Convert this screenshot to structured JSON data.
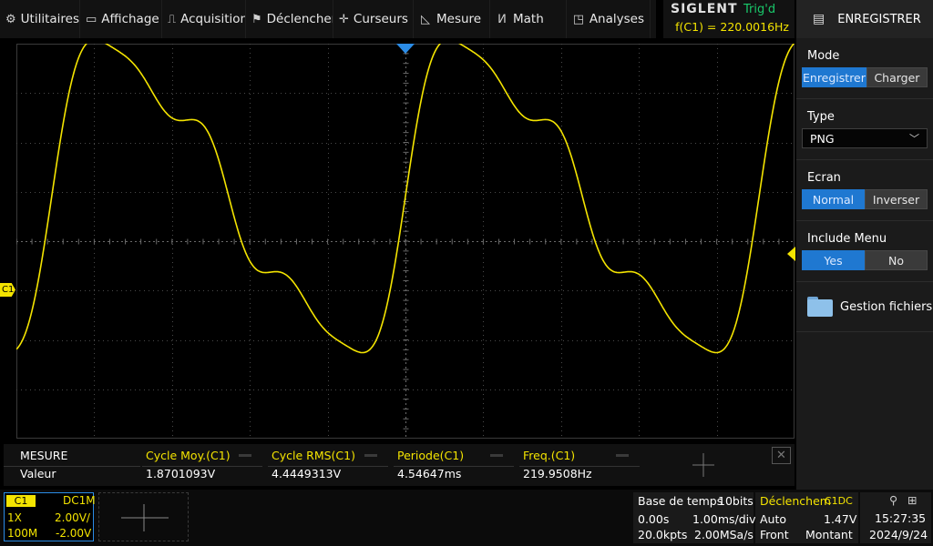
{
  "menu": [
    {
      "label": "Utilitaires",
      "icon": "gear-icon",
      "glyph": "⚙"
    },
    {
      "label": "Affichage",
      "icon": "monitor-icon",
      "glyph": "▭"
    },
    {
      "label": "Acquisition",
      "icon": "acquisition-icon",
      "glyph": "⎍"
    },
    {
      "label": "Déclencheme",
      "icon": "trigger-icon",
      "glyph": "⚑"
    },
    {
      "label": "Curseurs",
      "icon": "cursor-crosshair-icon",
      "glyph": "✛"
    },
    {
      "label": "Mesure",
      "icon": "measure-ruler-icon",
      "glyph": "◺"
    },
    {
      "label": "Math",
      "icon": "math-icon",
      "glyph": "ⵍ"
    },
    {
      "label": "Analyses",
      "icon": "analysis-icon",
      "glyph": "◳"
    }
  ],
  "brand": {
    "logo": "SIGLENT",
    "trig_status": "Trig'd",
    "freq_readout": "f(C1) = 220.0016Hz"
  },
  "panel": {
    "header": "ENREGISTRER",
    "mode": {
      "label": "Mode",
      "options": [
        "Enregistrer",
        "Charger"
      ],
      "selected": 0
    },
    "type": {
      "label": "Type",
      "value": "PNG"
    },
    "screen": {
      "label": "Ecran",
      "options": [
        "Normal",
        "Inverser"
      ],
      "selected": 0
    },
    "include_menu": {
      "label": "Include Menu",
      "options": [
        "Yes",
        "No"
      ],
      "selected": 0
    },
    "files_label": "Gestion fichiers"
  },
  "channel_marker": "C1",
  "measure": {
    "title": "MESURE",
    "row_label": "Valeur",
    "columns": [
      {
        "head": "Cycle Moy.(C1)",
        "value": "1.8701093V"
      },
      {
        "head": "Cycle RMS(C1)",
        "value": "4.4449313V"
      },
      {
        "head": "Periode(C1)",
        "value": "4.54647ms"
      },
      {
        "head": "Freq.(C1)",
        "value": "219.9508Hz"
      }
    ]
  },
  "channel1": {
    "tag": "C1",
    "coupling": "DC1M",
    "probe": "1X",
    "scale": "2.00V/",
    "bandwidth": "100M",
    "offset": "-2.00V"
  },
  "timebase": {
    "title": "Base de temps",
    "bits": "10bits",
    "delay": "0.00s",
    "scale": "1.00ms/div",
    "points": "20.0kpts",
    "rate": "2.00MSa/s"
  },
  "trigger": {
    "title": "Déclenchem",
    "source": "C1DC",
    "mode": "Auto",
    "level": "1.47V",
    "type": "Front",
    "slope": "Montant"
  },
  "clock": {
    "time": "15:27:35",
    "date": "2024/9/24"
  },
  "colors": {
    "trace": "#f4e400",
    "accent": "#1f78d1",
    "trig_ok": "#19c86a"
  },
  "waveform": {
    "cycles_on_screen": 2.2,
    "harmonics": [
      [
        1,
        1.0,
        0
      ],
      [
        2,
        0.28,
        0
      ],
      [
        3,
        0.22,
        0
      ],
      [
        5,
        0.08,
        0
      ]
    ]
  }
}
